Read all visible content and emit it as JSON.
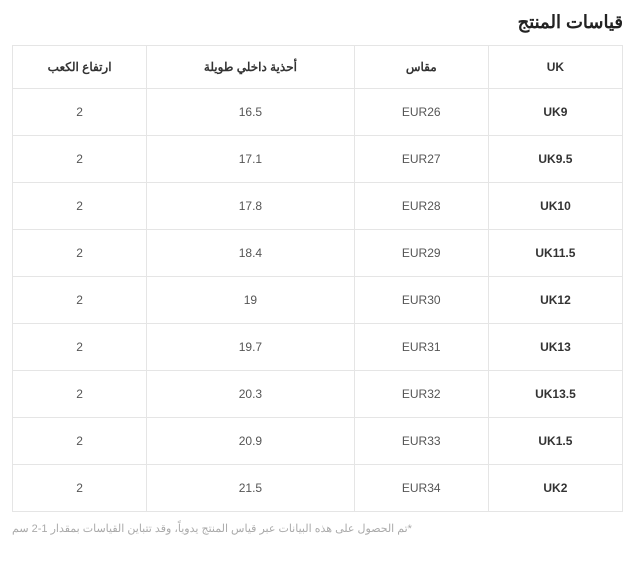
{
  "title": "قياسات المنتج",
  "columns": {
    "uk": "UK",
    "size": "مقاس",
    "inner": "أحذية داخلي طويلة",
    "heel": "ارتفاع الكعب"
  },
  "rows": [
    {
      "uk": "UK9",
      "size": "EUR26",
      "inner": "16.5",
      "heel": "2"
    },
    {
      "uk": "UK9.5",
      "size": "EUR27",
      "inner": "17.1",
      "heel": "2"
    },
    {
      "uk": "UK10",
      "size": "EUR28",
      "inner": "17.8",
      "heel": "2"
    },
    {
      "uk": "UK11.5",
      "size": "EUR29",
      "inner": "18.4",
      "heel": "2"
    },
    {
      "uk": "UK12",
      "size": "EUR30",
      "inner": "19",
      "heel": "2"
    },
    {
      "uk": "UK13",
      "size": "EUR31",
      "inner": "19.7",
      "heel": "2"
    },
    {
      "uk": "UK13.5",
      "size": "EUR32",
      "inner": "20.3",
      "heel": "2"
    },
    {
      "uk": "UK1.5",
      "size": "EUR33",
      "inner": "20.9",
      "heel": "2"
    },
    {
      "uk": "UK2",
      "size": "EUR34",
      "inner": "21.5",
      "heel": "2"
    }
  ],
  "footnote": "*تم الحصول على هذه البيانات عبر قياس المنتج يدوياً، وقد تتباين القياسات بمقدار 1-2 سم"
}
